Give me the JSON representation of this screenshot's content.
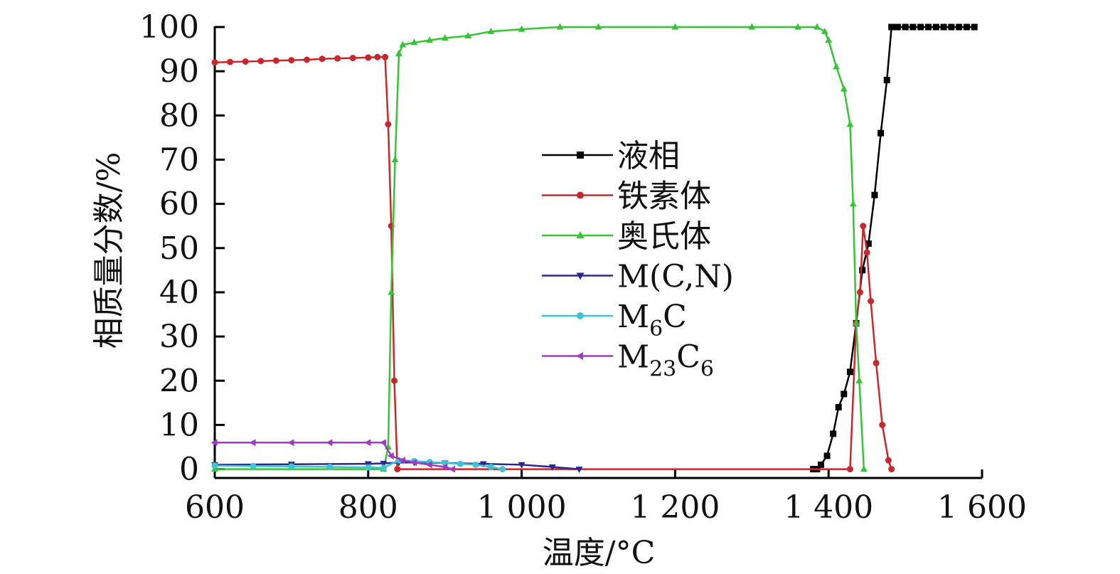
{
  "chart_data": {
    "type": "line",
    "title": "",
    "xlabel": "温度/°C",
    "ylabel": "相质量分数/%",
    "xlim": [
      600,
      1600
    ],
    "ylim": [
      -2,
      100
    ],
    "x_ticks": [
      600,
      800,
      1000,
      1200,
      1400,
      1600
    ],
    "x_tick_labels": [
      "600",
      "800",
      "1 000",
      "1 200",
      "1 400",
      "1 600"
    ],
    "y_ticks": [
      0,
      10,
      20,
      30,
      40,
      50,
      60,
      70,
      80,
      90,
      100
    ],
    "y_tick_labels": [
      "0",
      "10",
      "20",
      "30",
      "40",
      "50",
      "60",
      "70",
      "80",
      "90",
      "100"
    ],
    "legend_position": "center",
    "series": [
      {
        "name": "液相",
        "color": "#000000",
        "marker": "square",
        "x": [
          1380,
          1385,
          1390,
          1398,
          1406,
          1413,
          1420,
          1428,
          1436,
          1444,
          1452,
          1460,
          1468,
          1476,
          1482,
          1490,
          1500,
          1510,
          1520,
          1530,
          1540,
          1550,
          1560,
          1570,
          1580,
          1590
        ],
        "y": [
          0,
          0,
          1,
          3,
          8,
          14,
          17,
          22,
          33,
          45,
          51,
          62,
          76,
          88,
          100,
          100,
          100,
          100,
          100,
          100,
          100,
          100,
          100,
          100,
          100,
          100
        ]
      },
      {
        "name": "铁素体",
        "color": "#c8282d",
        "marker": "circle",
        "x": [
          600,
          620,
          640,
          660,
          680,
          700,
          720,
          740,
          760,
          780,
          800,
          812,
          822,
          826,
          830,
          834,
          838,
          1428,
          1436,
          1441,
          1445,
          1450,
          1455,
          1462,
          1470,
          1478,
          1482
        ],
        "y": [
          92,
          92.1,
          92.2,
          92.3,
          92.4,
          92.5,
          92.6,
          92.8,
          92.9,
          93,
          93.1,
          93.2,
          93.2,
          78,
          55,
          20,
          0,
          0,
          33,
          40,
          55,
          49,
          38,
          24,
          10,
          2,
          0
        ]
      },
      {
        "name": "奥氏体",
        "color": "#35c435",
        "marker": "triangle-up",
        "x": [
          600,
          820,
          826,
          830,
          835,
          840,
          845,
          860,
          880,
          900,
          930,
          960,
          1000,
          1050,
          1100,
          1200,
          1300,
          1360,
          1385,
          1395,
          1400,
          1410,
          1420,
          1428,
          1432,
          1436,
          1440,
          1446
        ],
        "y": [
          0,
          0,
          5,
          40,
          70,
          94,
          96,
          96.5,
          97,
          97.5,
          98,
          99,
          99.5,
          100,
          100,
          100,
          100,
          100,
          100,
          99,
          97,
          91,
          86,
          78,
          60,
          33,
          20,
          0
        ]
      },
      {
        "name": "M(C,N)",
        "color": "#2a2a8c",
        "marker": "triangle-down",
        "x": [
          600,
          700,
          800,
          820,
          840,
          860,
          900,
          950,
          1000,
          1040,
          1075
        ],
        "y": [
          1,
          1.1,
          1.2,
          1.3,
          1.5,
          1.5,
          1.4,
          1.2,
          1,
          0.5,
          0
        ]
      },
      {
        "name": "M6C",
        "color": "#3fc2d2",
        "marker": "circle",
        "x": [
          600,
          650,
          700,
          750,
          800,
          820,
          840,
          860,
          880,
          900,
          920,
          940,
          960,
          975
        ],
        "y": [
          0.8,
          0.7,
          0.6,
          0.5,
          0.4,
          0.3,
          2,
          1.8,
          1.6,
          1.4,
          1.2,
          1,
          0.5,
          0
        ]
      },
      {
        "name": "M23C6",
        "color": "#a238c6",
        "marker": "triangle-left",
        "x": [
          600,
          650,
          700,
          750,
          800,
          820,
          830,
          845,
          860,
          880,
          900,
          910
        ],
        "y": [
          6,
          6,
          6,
          6,
          6,
          6,
          3,
          2,
          1.5,
          1,
          0.5,
          0
        ]
      }
    ],
    "legend_labels": [
      {
        "main": "液相",
        "sub": "",
        "tail": ""
      },
      {
        "main": "铁素体",
        "sub": "",
        "tail": ""
      },
      {
        "main": "奥氏体",
        "sub": "",
        "tail": ""
      },
      {
        "main": "M(C,N)",
        "sub": "",
        "tail": ""
      },
      {
        "main": "M",
        "sub": "6",
        "tail": "C"
      },
      {
        "main": "M",
        "sub": "23",
        "tail": "C6"
      }
    ]
  }
}
